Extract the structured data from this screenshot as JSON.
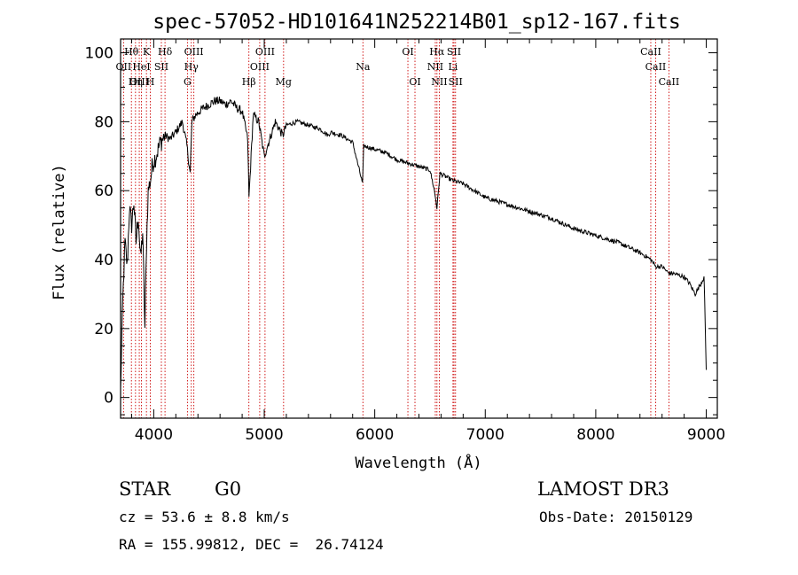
{
  "chart_data": {
    "type": "line",
    "title": "spec-57052-HD101641N252214B01_sp12-167.fits",
    "xlabel": "Wavelength (Å)",
    "ylabel": "Flux (relative)",
    "xlim": [
      3700,
      9100
    ],
    "ylim": [
      -6,
      104
    ],
    "xticks": [
      4000,
      5000,
      6000,
      7000,
      8000,
      9000
    ],
    "yticks": [
      0,
      20,
      40,
      60,
      80,
      100
    ],
    "grid": false,
    "line_color": "#000000",
    "marker_color": "#cc0000",
    "series": [
      {
        "name": "spectrum",
        "x": [
          3700,
          3720,
          3740,
          3760,
          3780,
          3800,
          3820,
          3840,
          3860,
          3880,
          3900,
          3920,
          3935,
          3950,
          3970,
          3990,
          4020,
          4060,
          4100,
          4150,
          4200,
          4260,
          4300,
          4330,
          4345,
          4380,
          4450,
          4500,
          4550,
          4600,
          4650,
          4700,
          4750,
          4800,
          4850,
          4862,
          4900,
          4950,
          5000,
          5100,
          5167,
          5200,
          5300,
          5400,
          5500,
          5580,
          5600,
          5700,
          5800,
          5890,
          5900,
          6000,
          6100,
          6200,
          6300,
          6400,
          6500,
          6540,
          6563,
          6590,
          6700,
          6800,
          6900,
          7000,
          7200,
          7400,
          7600,
          7800,
          8000,
          8200,
          8400,
          8500,
          8542,
          8600,
          8662,
          8700,
          8800,
          8850,
          8900,
          8950,
          8980,
          9000
        ],
        "y": [
          2,
          28,
          45,
          38,
          55,
          50,
          57,
          45,
          53,
          40,
          48,
          20,
          45,
          60,
          63,
          68,
          70,
          74,
          76,
          75,
          77,
          80,
          73,
          65,
          80,
          82,
          84,
          85,
          86,
          86,
          85,
          86,
          84,
          83,
          75,
          58,
          82,
          80,
          70,
          80,
          76,
          79,
          80,
          79,
          78,
          76,
          77,
          76,
          74,
          62,
          73,
          72,
          71,
          69,
          68,
          67,
          66,
          60,
          55,
          65,
          63,
          62,
          60,
          58,
          56,
          54,
          52,
          49,
          47,
          45,
          42,
          40,
          38,
          38,
          36,
          36,
          35,
          33,
          30,
          33,
          35,
          8
        ]
      }
    ],
    "lines": [
      {
        "name": "Hθ",
        "wave": 3798,
        "row": 1
      },
      {
        "name": "OII",
        "wave": 3727,
        "row": 2
      },
      {
        "name": "OIII",
        "wave": 3869,
        "row": 3
      },
      {
        "name": "HeI",
        "wave": 3889,
        "row": 2
      },
      {
        "name": "Hη",
        "wave": 3835,
        "row": 3
      },
      {
        "name": "K",
        "wave": 3934,
        "row": 1
      },
      {
        "name": "SII",
        "wave": 4069,
        "row": 2
      },
      {
        "name": "H",
        "wave": 3969,
        "row": 3
      },
      {
        "name": "Hδ",
        "wave": 4102,
        "row": 1
      },
      {
        "name": "OIII",
        "wave": 4363,
        "row": 1
      },
      {
        "name": "Hγ",
        "wave": 4340,
        "row": 2
      },
      {
        "name": "G",
        "wave": 4305,
        "row": 3
      },
      {
        "name": "Hβ",
        "wave": 4861,
        "row": 3
      },
      {
        "name": "OIII",
        "wave": 4959,
        "row": 2
      },
      {
        "name": "OIII",
        "wave": 5007,
        "row": 1
      },
      {
        "name": "Mg",
        "wave": 5175,
        "row": 3
      },
      {
        "name": "Na",
        "wave": 5893,
        "row": 2
      },
      {
        "name": "OI",
        "wave": 6300,
        "row": 1
      },
      {
        "name": "OI",
        "wave": 6364,
        "row": 3
      },
      {
        "name": "Hα",
        "wave": 6563,
        "row": 1
      },
      {
        "name": "NII",
        "wave": 6548,
        "row": 2
      },
      {
        "name": "NII",
        "wave": 6584,
        "row": 3
      },
      {
        "name": "SII",
        "wave": 6717,
        "row": 1
      },
      {
        "name": "Li",
        "wave": 6708,
        "row": 2
      },
      {
        "name": "SII",
        "wave": 6731,
        "row": 3
      },
      {
        "name": "CaII",
        "wave": 8498,
        "row": 1
      },
      {
        "name": "CaII",
        "wave": 8542,
        "row": 2
      },
      {
        "name": "CaII",
        "wave": 8662,
        "row": 3
      }
    ]
  },
  "info": {
    "object_class": "STAR",
    "subclass": "G0",
    "survey": "LAMOST DR3",
    "cz": "cz = 53.6 ± 8.8 km/s",
    "obs_date": "Obs-Date: 20150129",
    "coords": "RA = 155.99812, DEC =  26.74124"
  }
}
